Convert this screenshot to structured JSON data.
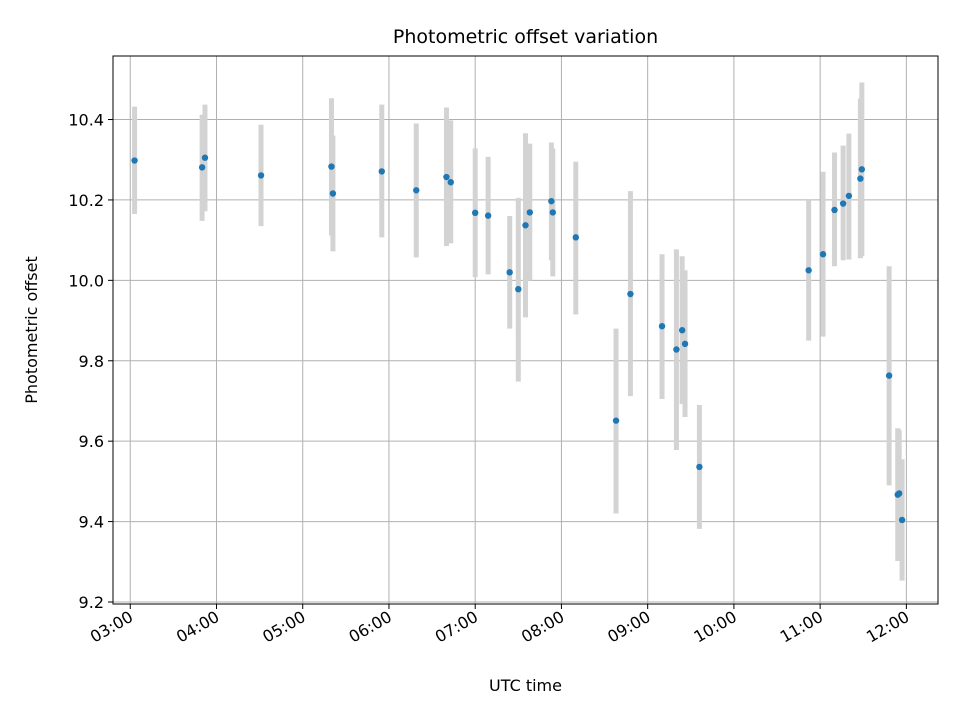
{
  "chart_data": {
    "type": "scatter",
    "title": "Photometric offset variation",
    "xlabel": "UTC time",
    "ylabel": "Photometric offset",
    "xlim": [
      "02:48",
      "12:22"
    ],
    "ylim": [
      9.195,
      10.558
    ],
    "x_ticks": [
      "03:00",
      "04:00",
      "05:00",
      "06:00",
      "07:00",
      "08:00",
      "09:00",
      "10:00",
      "11:00",
      "12:00"
    ],
    "y_ticks": [
      "9.2",
      "9.4",
      "9.6",
      "9.8",
      "10.0",
      "10.2",
      "10.4"
    ],
    "grid": true,
    "marker_color": "#1f77b4",
    "errorbar_color": "#d3d3d3",
    "points": [
      {
        "x": "03:03",
        "y": 10.298,
        "lo": 10.165,
        "hi": 10.432
      },
      {
        "x": "03:50",
        "y": 10.281,
        "lo": 10.148,
        "hi": 10.412
      },
      {
        "x": "03:52",
        "y": 10.305,
        "lo": 10.172,
        "hi": 10.437
      },
      {
        "x": "04:31",
        "y": 10.261,
        "lo": 10.135,
        "hi": 10.387
      },
      {
        "x": "05:20",
        "y": 10.283,
        "lo": 10.112,
        "hi": 10.453
      },
      {
        "x": "05:21",
        "y": 10.216,
        "lo": 10.072,
        "hi": 10.36
      },
      {
        "x": "05:55",
        "y": 10.271,
        "lo": 10.107,
        "hi": 10.437
      },
      {
        "x": "06:19",
        "y": 10.224,
        "lo": 10.057,
        "hi": 10.39
      },
      {
        "x": "06:40",
        "y": 10.257,
        "lo": 10.085,
        "hi": 10.43
      },
      {
        "x": "06:43",
        "y": 10.244,
        "lo": 10.092,
        "hi": 10.398
      },
      {
        "x": "07:00",
        "y": 10.168,
        "lo": 10.008,
        "hi": 10.328
      },
      {
        "x": "07:09",
        "y": 10.161,
        "lo": 10.015,
        "hi": 10.307
      },
      {
        "x": "07:24",
        "y": 10.02,
        "lo": 9.88,
        "hi": 10.16
      },
      {
        "x": "07:30",
        "y": 9.978,
        "lo": 9.748,
        "hi": 10.205
      },
      {
        "x": "07:35",
        "y": 10.137,
        "lo": 9.908,
        "hi": 10.366
      },
      {
        "x": "07:38",
        "y": 10.169,
        "lo": 10.0,
        "hi": 10.34
      },
      {
        "x": "07:53",
        "y": 10.197,
        "lo": 10.05,
        "hi": 10.343
      },
      {
        "x": "07:54",
        "y": 10.169,
        "lo": 10.01,
        "hi": 10.328
      },
      {
        "x": "08:10",
        "y": 10.107,
        "lo": 9.915,
        "hi": 10.295
      },
      {
        "x": "08:38",
        "y": 9.651,
        "lo": 9.42,
        "hi": 9.88
      },
      {
        "x": "08:48",
        "y": 9.966,
        "lo": 9.712,
        "hi": 10.222
      },
      {
        "x": "09:10",
        "y": 9.886,
        "lo": 9.705,
        "hi": 10.065
      },
      {
        "x": "09:20",
        "y": 9.828,
        "lo": 9.578,
        "hi": 10.077
      },
      {
        "x": "09:24",
        "y": 9.876,
        "lo": 9.692,
        "hi": 10.06
      },
      {
        "x": "09:26",
        "y": 9.842,
        "lo": 9.66,
        "hi": 10.025
      },
      {
        "x": "09:36",
        "y": 9.536,
        "lo": 9.382,
        "hi": 9.69
      },
      {
        "x": "10:52",
        "y": 10.025,
        "lo": 9.85,
        "hi": 10.2
      },
      {
        "x": "11:02",
        "y": 10.065,
        "lo": 9.86,
        "hi": 10.27
      },
      {
        "x": "11:10",
        "y": 10.175,
        "lo": 10.035,
        "hi": 10.318
      },
      {
        "x": "11:16",
        "y": 10.191,
        "lo": 10.05,
        "hi": 10.335
      },
      {
        "x": "11:20",
        "y": 10.21,
        "lo": 10.052,
        "hi": 10.365
      },
      {
        "x": "11:28",
        "y": 10.253,
        "lo": 10.055,
        "hi": 10.452
      },
      {
        "x": "11:29",
        "y": 10.276,
        "lo": 10.06,
        "hi": 10.492
      },
      {
        "x": "11:48",
        "y": 9.763,
        "lo": 9.49,
        "hi": 10.035
      },
      {
        "x": "11:54",
        "y": 9.467,
        "lo": 9.302,
        "hi": 9.632
      },
      {
        "x": "11:55",
        "y": 9.47,
        "lo": 9.312,
        "hi": 9.628
      },
      {
        "x": "11:57",
        "y": 9.404,
        "lo": 9.253,
        "hi": 9.555
      }
    ]
  }
}
